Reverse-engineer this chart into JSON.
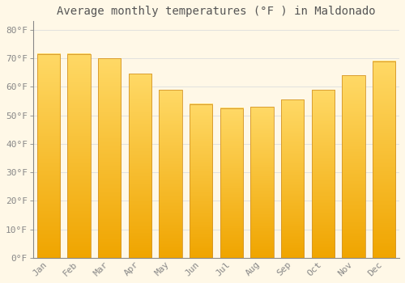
{
  "title": "Average monthly temperatures (°F ) in Maldonado",
  "categories": [
    "Jan",
    "Feb",
    "Mar",
    "Apr",
    "May",
    "Jun",
    "Jul",
    "Aug",
    "Sep",
    "Oct",
    "Nov",
    "Dec"
  ],
  "values": [
    71.5,
    71.5,
    70.0,
    64.5,
    59.0,
    54.0,
    52.5,
    53.0,
    55.5,
    59.0,
    64.0,
    69.0
  ],
  "bar_color_top": "#FFD966",
  "bar_color_bottom": "#F0A500",
  "bar_edge_color": "#D4952A",
  "background_color": "#FFF8E7",
  "grid_color": "#DDDDDD",
  "text_color": "#888888",
  "ylim": [
    0,
    83
  ],
  "ytick_values": [
    0,
    10,
    20,
    30,
    40,
    50,
    60,
    70,
    80
  ],
  "ytick_labels": [
    "0°F",
    "10°F",
    "20°F",
    "30°F",
    "40°F",
    "50°F",
    "60°F",
    "70°F",
    "80°F"
  ],
  "title_fontsize": 10,
  "tick_fontsize": 8,
  "font_family": "monospace"
}
